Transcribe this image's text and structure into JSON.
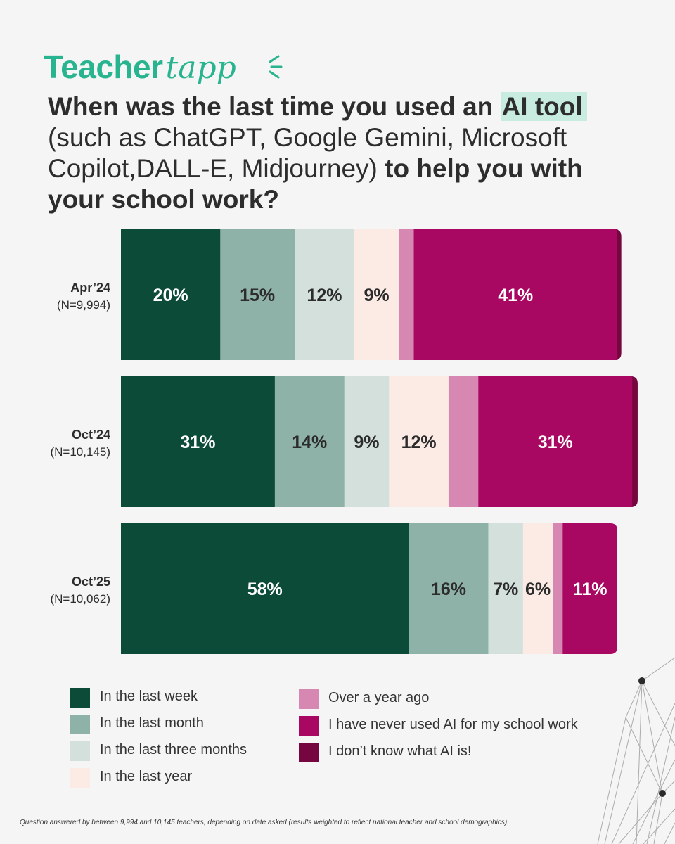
{
  "logo": {
    "part1": "Teacher",
    "part2": "tapp"
  },
  "title": {
    "seg1": "When was the last time you used an ",
    "highlight": "AI tool",
    "seg2": " (such as ChatGPT, Google Gemini, Microsoft Copilot,DALL-E, Midjourney) ",
    "seg3": "to help you with your school work?"
  },
  "colors": {
    "background": "#f5f5f5",
    "brand": "#27b48e",
    "highlight": "#c8ece0",
    "series": [
      "#0b4b37",
      "#8fb2a8",
      "#d3e0dc",
      "#fcebe5",
      "#d688b2",
      "#a80861",
      "#76063f"
    ]
  },
  "chart_data": {
    "type": "bar",
    "orientation": "horizontal",
    "stacked": true,
    "categories": [
      "Apr’24",
      "Oct’24",
      "Oct’25"
    ],
    "category_sublabels": [
      "(N=9,994)",
      "(N=10,145)",
      "(N=10,062)"
    ],
    "series": [
      {
        "name": "In the last week",
        "values": [
          20,
          31,
          58
        ],
        "labels": [
          "20%",
          "31%",
          "58%"
        ],
        "color": "#0b4b37",
        "label_color": "#ffffff"
      },
      {
        "name": "In the last month",
        "values": [
          15,
          14,
          16
        ],
        "labels": [
          "15%",
          "14%",
          "16%"
        ],
        "color": "#8fb2a8",
        "label_color": "#2c2c2c"
      },
      {
        "name": "In the last three months",
        "values": [
          12,
          9,
          7
        ],
        "labels": [
          "12%",
          "9%",
          "7%"
        ],
        "color": "#d3e0dc",
        "label_color": "#2c2c2c"
      },
      {
        "name": "In the last year",
        "values": [
          9,
          12,
          6
        ],
        "labels": [
          "9%",
          "12%",
          "6%"
        ],
        "color": "#fcebe5",
        "label_color": "#2c2c2c"
      },
      {
        "name": "Over a year ago",
        "values": [
          3,
          6,
          2
        ],
        "labels": [
          "",
          "",
          ""
        ],
        "color": "#d688b2",
        "label_color": "#2c2c2c"
      },
      {
        "name": "I have never used AI for my school work",
        "values": [
          41,
          31,
          11
        ],
        "labels": [
          "41%",
          "31%",
          "11%"
        ],
        "color": "#a80861",
        "label_color": "#ffffff"
      },
      {
        "name": "I don’t know what AI is!",
        "values": [
          0.8,
          1.1,
          0
        ],
        "labels": [
          "",
          "",
          ""
        ],
        "color": "#76063f",
        "label_color": "#ffffff"
      }
    ]
  },
  "footnote": "Question answered by between 9,994 and 10,145 teachers, depending on date asked (results weighted to reflect national teacher and school demographics)."
}
